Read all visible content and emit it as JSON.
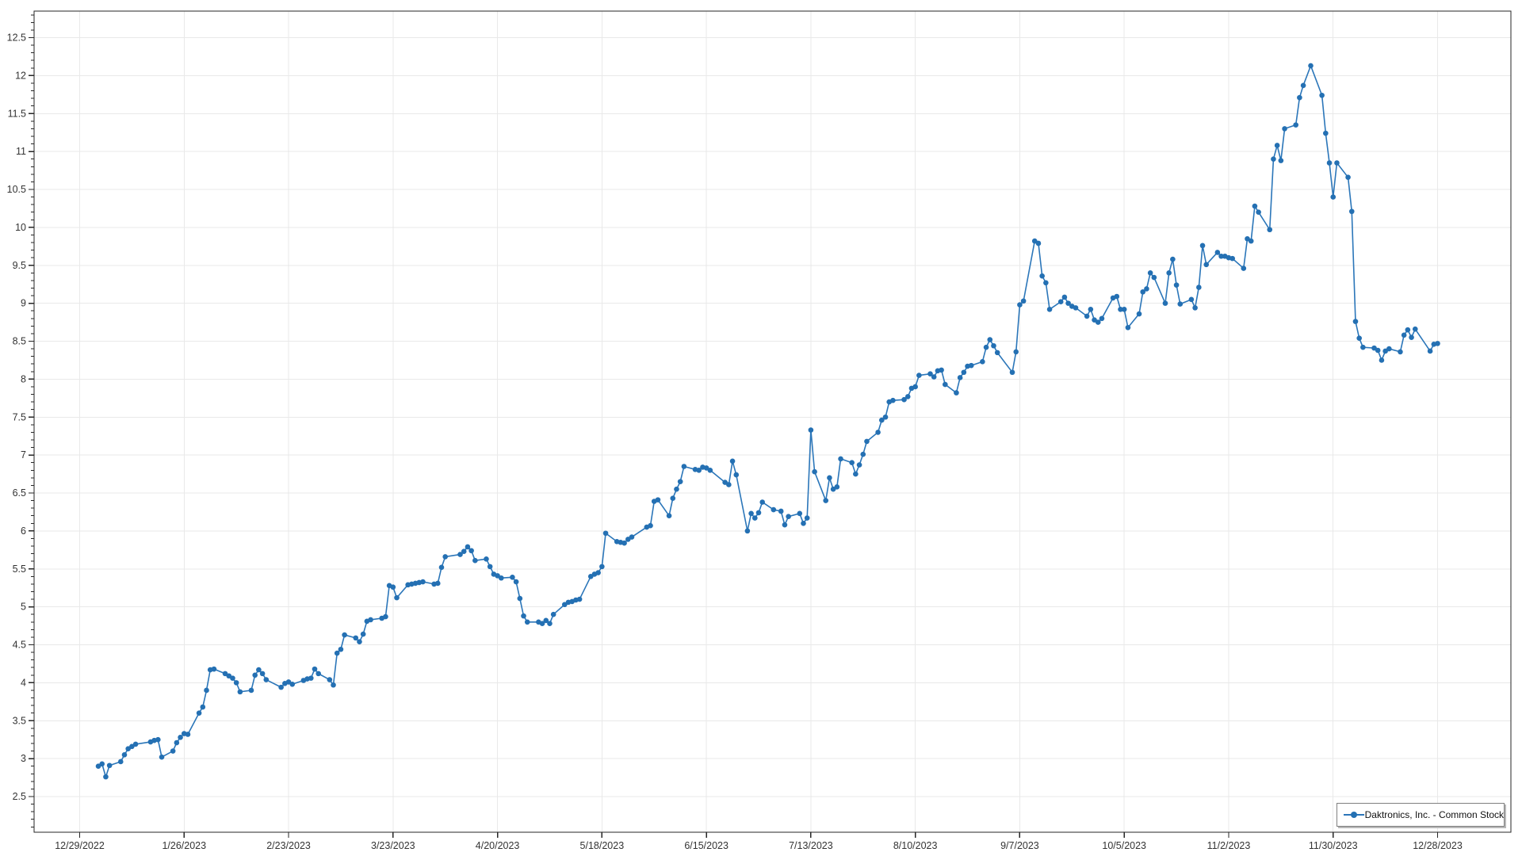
{
  "chart_data": {
    "type": "line",
    "title": "",
    "xlabel": "",
    "ylabel": "",
    "grid": true,
    "legend_position": "bottom-right",
    "series": [
      {
        "name": "Daktronics, Inc. - Common Stock",
        "color": "#2b76b9",
        "marker_color": "#2470b3",
        "values": [
          2.9,
          2.93,
          2.76,
          2.91,
          2.96,
          3.05,
          3.13,
          3.16,
          3.19,
          3.22,
          3.24,
          3.25,
          3.02,
          3.1,
          3.21,
          3.28,
          3.33,
          3.32,
          3.6,
          3.68,
          3.9,
          4.17,
          4.18,
          4.12,
          4.09,
          4.06,
          4.0,
          3.88,
          3.9,
          4.1,
          4.17,
          4.12,
          4.04,
          3.94,
          3.99,
          4.01,
          3.98,
          4.03,
          4.05,
          4.06,
          4.18,
          4.12,
          4.04,
          3.97,
          4.39,
          4.44,
          4.63,
          4.59,
          4.54,
          4.64,
          4.81,
          4.83,
          4.85,
          4.87,
          5.28,
          5.26,
          5.12,
          5.29,
          5.3,
          5.31,
          5.32,
          5.33,
          5.3,
          5.31,
          5.52,
          5.66,
          5.69,
          5.73,
          5.79,
          5.74,
          5.61,
          5.63,
          5.53,
          5.43,
          5.41,
          5.38,
          5.39,
          5.33,
          5.11,
          4.88,
          4.8,
          4.8,
          4.78,
          4.82,
          4.78,
          4.9,
          5.03,
          5.06,
          5.07,
          5.09,
          5.1,
          5.4,
          5.43,
          5.45,
          5.53,
          5.97,
          5.86,
          5.85,
          5.84,
          5.89,
          5.92,
          6.05,
          6.07,
          6.39,
          6.41,
          6.2,
          6.43,
          6.55,
          6.65,
          6.85,
          6.81,
          6.8,
          6.84,
          6.83,
          6.8,
          6.64,
          6.61,
          6.92,
          6.74,
          6.0,
          6.23,
          6.17,
          6.24,
          6.38,
          6.28,
          6.26,
          6.08,
          6.19,
          6.23,
          6.1,
          6.17,
          7.33,
          6.78,
          6.4,
          6.7,
          6.55,
          6.58,
          6.95,
          6.9,
          6.75,
          6.87,
          7.01,
          7.18,
          7.3,
          7.46,
          7.5,
          7.7,
          7.72,
          7.73,
          7.77,
          7.88,
          7.9,
          8.05,
          8.07,
          8.03,
          8.11,
          8.12,
          7.93,
          7.82,
          8.02,
          8.09,
          8.17,
          8.18,
          8.23,
          8.42,
          8.52,
          8.44,
          8.35,
          8.09,
          8.36,
          8.98,
          9.03,
          9.82,
          9.79,
          9.36,
          9.27,
          8.92,
          9.02,
          9.08,
          9.0,
          8.96,
          8.94,
          8.83,
          8.92,
          8.78,
          8.75,
          8.8,
          9.07,
          9.09,
          8.92,
          8.92,
          8.68,
          8.86,
          9.15,
          9.19,
          9.4,
          9.34,
          9.0,
          9.4,
          9.58,
          9.24,
          8.99,
          9.05,
          8.94,
          9.21,
          9.76,
          9.51,
          9.67,
          9.62,
          9.62,
          9.6,
          9.59,
          9.46,
          9.85,
          9.82,
          10.28,
          10.2,
          9.97,
          10.9,
          11.08,
          10.88,
          11.3,
          11.35,
          11.71,
          11.87,
          12.13,
          11.74,
          11.24,
          10.85,
          10.4,
          10.85,
          10.66,
          10.21,
          8.76,
          8.54,
          8.42,
          8.41,
          8.38,
          8.25,
          8.37,
          8.4,
          8.36,
          8.58,
          8.65,
          8.55,
          8.66,
          8.37,
          8.46,
          8.47
        ]
      }
    ],
    "x_axis": {
      "tick_labels": [
        "12/29/2022",
        "1/26/2023",
        "2/23/2023",
        "3/23/2023",
        "4/20/2023",
        "5/18/2023",
        "6/15/2023",
        "7/13/2023",
        "8/10/2023",
        "9/7/2023",
        "10/5/2023",
        "11/2/2023",
        "11/30/2023",
        "12/28/2023"
      ],
      "tick_interval_days": 28,
      "first_point_day_offset": 5,
      "last_day_offset": 364,
      "start_weekday": "Thursday",
      "market_closed_day_offsets": [
        18,
        53,
        99,
        151,
        172,
        187,
        249,
        329,
        361
      ]
    },
    "y_axis": {
      "tick_labels": [
        "2.5",
        "3",
        "3.5",
        "4",
        "4.5",
        "5",
        "5.5",
        "6",
        "6.5",
        "7",
        "7.5",
        "8",
        "8.5",
        "9",
        "9.5",
        "10",
        "10.5",
        "11",
        "11.5",
        "12",
        "12.5"
      ],
      "min": 2.5,
      "max": 12.5,
      "major_step": 0.5,
      "minor_step": 0.1
    },
    "legend": {
      "label": "Daktronics, Inc. - Common Stock"
    }
  },
  "colors": {
    "line": "#2b76b9",
    "marker": "#2470b3",
    "grid": "#e9e9e9",
    "axis": "#262626",
    "tick_text": "#333333",
    "background": "#ffffff"
  }
}
